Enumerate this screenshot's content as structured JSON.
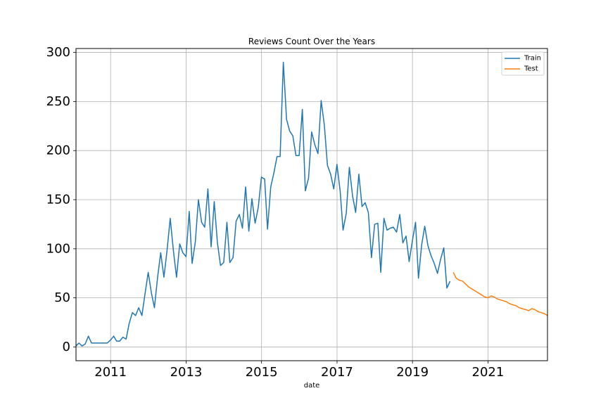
{
  "chart_data": {
    "type": "line",
    "title": "Reviews Count Over the Years",
    "xlabel": "date",
    "ylabel": "",
    "x_axis": "date",
    "xlim": [
      "2010-01-31",
      "2022-07-31"
    ],
    "ylim": [
      -14,
      304
    ],
    "x_ticks": [
      "2011",
      "2013",
      "2015",
      "2017",
      "2019",
      "2021"
    ],
    "y_ticks": [
      0,
      50,
      100,
      150,
      200,
      250,
      300
    ],
    "grid": true,
    "legend_position": "top-right",
    "series": [
      {
        "name": "Train",
        "color": "#1f77b4",
        "x": [
          "2010-01-31",
          "2010-02-28",
          "2010-03-31",
          "2010-04-30",
          "2010-05-31",
          "2010-06-30",
          "2010-07-31",
          "2010-08-31",
          "2010-09-30",
          "2010-10-31",
          "2010-11-30",
          "2010-12-31",
          "2011-01-31",
          "2011-02-28",
          "2011-03-31",
          "2011-04-30",
          "2011-05-31",
          "2011-06-30",
          "2011-07-31",
          "2011-08-31",
          "2011-09-30",
          "2011-10-31",
          "2011-11-30",
          "2011-12-31",
          "2012-01-31",
          "2012-02-29",
          "2012-03-31",
          "2012-04-30",
          "2012-05-31",
          "2012-06-30",
          "2012-07-31",
          "2012-08-31",
          "2012-09-30",
          "2012-10-31",
          "2012-11-30",
          "2012-12-31",
          "2013-01-31",
          "2013-02-28",
          "2013-03-31",
          "2013-04-30",
          "2013-05-31",
          "2013-06-30",
          "2013-07-31",
          "2013-08-31",
          "2013-09-30",
          "2013-10-31",
          "2013-11-30",
          "2013-12-31",
          "2014-01-31",
          "2014-02-28",
          "2014-03-31",
          "2014-04-30",
          "2014-05-31",
          "2014-06-30",
          "2014-07-31",
          "2014-08-31",
          "2014-09-30",
          "2014-10-31",
          "2014-11-30",
          "2014-12-31",
          "2015-01-31",
          "2015-02-28",
          "2015-03-31",
          "2015-04-30",
          "2015-05-31",
          "2015-06-30",
          "2015-07-31",
          "2015-08-31",
          "2015-09-30",
          "2015-10-31",
          "2015-11-30",
          "2015-12-31",
          "2016-01-31",
          "2016-02-29",
          "2016-03-31",
          "2016-04-30",
          "2016-05-31",
          "2016-06-30",
          "2016-07-31",
          "2016-08-31",
          "2016-09-30",
          "2016-10-31",
          "2016-11-30",
          "2016-12-31",
          "2017-01-31",
          "2017-02-28",
          "2017-03-31",
          "2017-04-30",
          "2017-05-31",
          "2017-06-30",
          "2017-07-31",
          "2017-08-31",
          "2017-09-30",
          "2017-10-31",
          "2017-11-30",
          "2017-12-31",
          "2018-01-31",
          "2018-02-28",
          "2018-03-31",
          "2018-04-30",
          "2018-05-31",
          "2018-06-30",
          "2018-07-31",
          "2018-08-31",
          "2018-09-30",
          "2018-10-31",
          "2018-11-30",
          "2018-12-31",
          "2019-01-31",
          "2019-02-28",
          "2019-03-31",
          "2019-04-30",
          "2019-05-31",
          "2019-06-30",
          "2019-07-31",
          "2019-08-31",
          "2019-09-30",
          "2019-10-31",
          "2019-11-30",
          "2019-12-31"
        ],
        "y": [
          1,
          4,
          1,
          3,
          11,
          4,
          4,
          4,
          4,
          4,
          4,
          7,
          11,
          6,
          6,
          10,
          8,
          24,
          35,
          32,
          40,
          32,
          54,
          76,
          55,
          40,
          71,
          96,
          71,
          98,
          131,
          98,
          71,
          105,
          96,
          92,
          138,
          85,
          107,
          150,
          127,
          122,
          161,
          102,
          148,
          106,
          83,
          86,
          127,
          86,
          91,
          128,
          135,
          121,
          163,
          118,
          151,
          126,
          142,
          173,
          171,
          120,
          163,
          177,
          194,
          194,
          290,
          232,
          220,
          215,
          195,
          195,
          242,
          159,
          172,
          219,
          206,
          197,
          251,
          226,
          185,
          176,
          161,
          186,
          159,
          119,
          136,
          183,
          154,
          137,
          176,
          143,
          147,
          137,
          91,
          125,
          126,
          76,
          131,
          119,
          121,
          122,
          117,
          135,
          106,
          113,
          87,
          108,
          127,
          70,
          104,
          123,
          103,
          93,
          85,
          75,
          89,
          101,
          60,
          67
        ]
      },
      {
        "name": "Test",
        "color": "#ff7f0e",
        "x": [
          "2020-01-31",
          "2020-02-29",
          "2020-03-31",
          "2020-04-30",
          "2020-05-31",
          "2020-06-30",
          "2020-07-31",
          "2020-08-31",
          "2020-09-30",
          "2020-10-31",
          "2020-11-30",
          "2020-12-31",
          "2021-01-31",
          "2021-02-28",
          "2021-03-31",
          "2021-04-30",
          "2021-05-31",
          "2021-06-30",
          "2021-07-31",
          "2021-08-31",
          "2021-09-30",
          "2021-10-31",
          "2021-11-30",
          "2021-12-31",
          "2022-01-31",
          "2022-02-28",
          "2022-03-31",
          "2022-04-30",
          "2022-05-31",
          "2022-06-30",
          "2022-07-31"
        ],
        "y": [
          76,
          70,
          68,
          67,
          64,
          61,
          59,
          57,
          55,
          53,
          51,
          50,
          52,
          51,
          49,
          48,
          47,
          46,
          44,
          43,
          42,
          40,
          39,
          38,
          37,
          39,
          38,
          36,
          35,
          34,
          32
        ]
      }
    ]
  }
}
